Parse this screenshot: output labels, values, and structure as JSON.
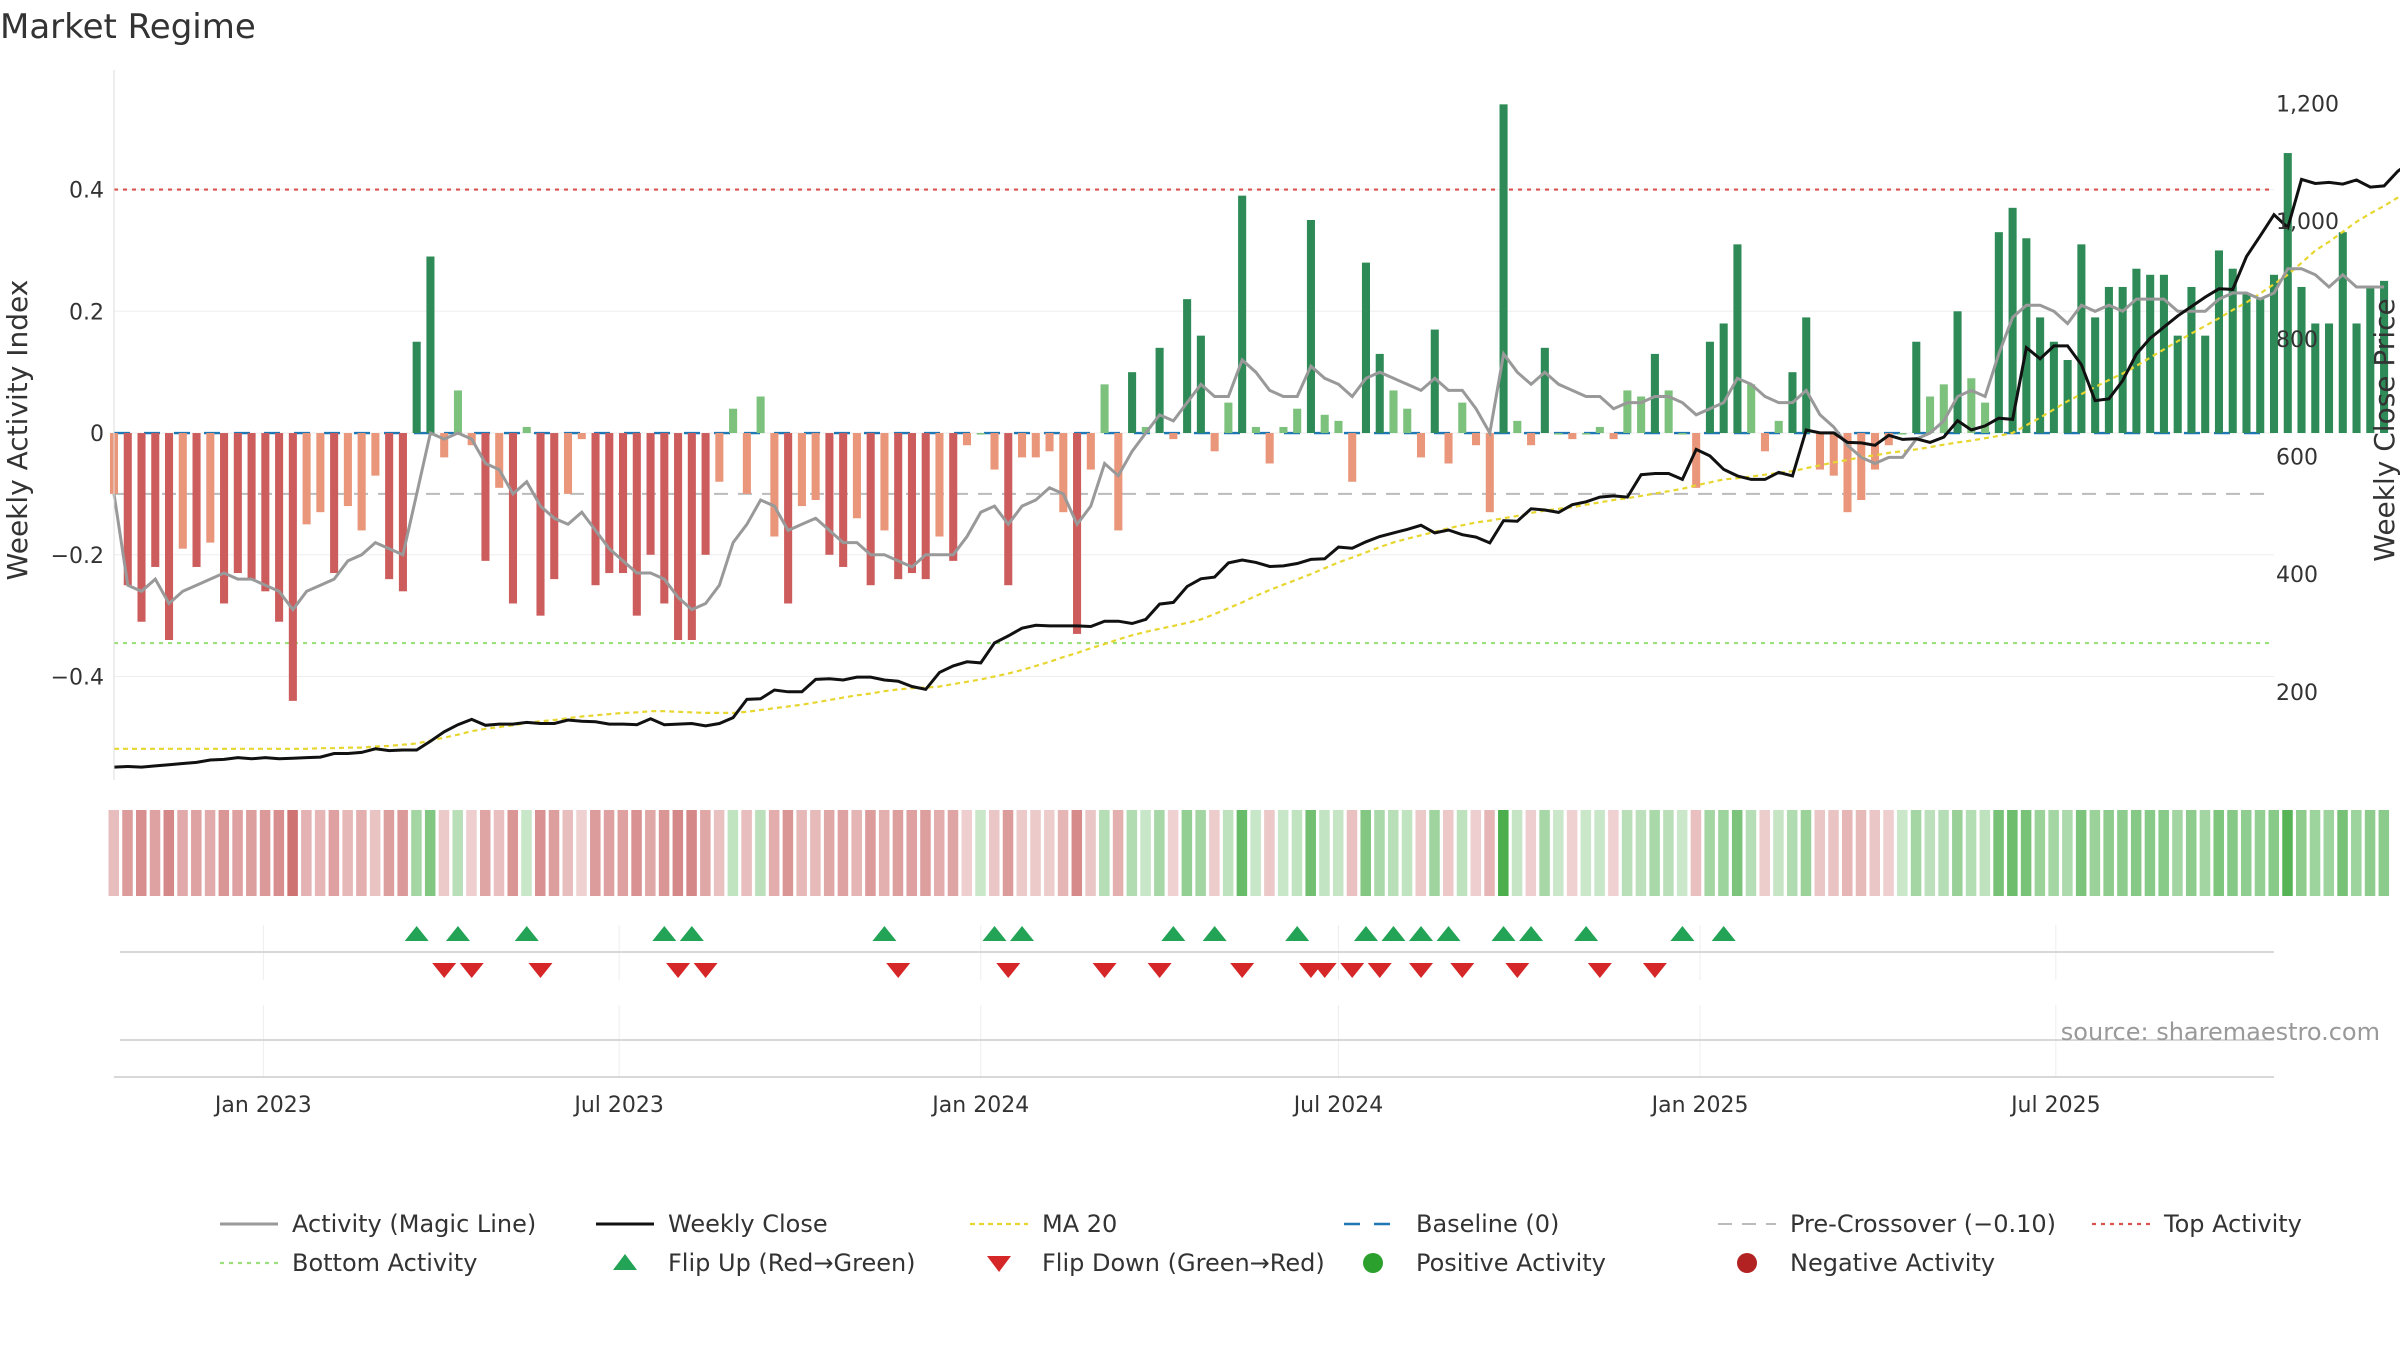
{
  "chart_data": {
    "type": "bar",
    "title": "Market Regime",
    "ylabel": "Weekly Activity Index",
    "y2label": "Weekly Close Price",
    "ylim": [
      -0.57,
      0.58
    ],
    "y2lim": [
      50,
      1240
    ],
    "yticks": [
      -0.4,
      -0.2,
      0,
      0.2,
      0.4
    ],
    "ytick_labels": [
      "−0.4",
      "−0.2",
      "0",
      "0.2",
      "0.4"
    ],
    "y2ticks": [
      200,
      400,
      600,
      800,
      1000,
      1200
    ],
    "y2tick_labels": [
      "200",
      "400",
      "600",
      "800",
      "1,000",
      "1,200"
    ],
    "x_start": "2022-10-17",
    "x_end": "2025-10-20",
    "xticks": [
      "2023-01-01",
      "2023-07-01",
      "2024-01-01",
      "2024-07-01",
      "2025-01-01",
      "2025-07-01"
    ],
    "xtick_labels": [
      "Jan 2023",
      "Jul 2023",
      "Jan 2024",
      "Jul 2024",
      "Jan 2025",
      "Jul 2025"
    ],
    "grid": true,
    "reference_lines": {
      "baseline": 0,
      "pre_crossover": -0.1,
      "top_activity": 0.4,
      "bottom_activity": -0.345
    },
    "colors": {
      "negative_strong": "#cd5c5c",
      "negative_weak": "#e9967a",
      "positive_strong": "#2e8b57",
      "positive_weak": "#7cc17c",
      "magic_line": "#999999",
      "weekly_close": "#111111",
      "ma20": "#e8d630",
      "baseline": "#1f77b4",
      "pre_crossover": "#bbbbbb",
      "top_activity": "#d9534f",
      "bottom_activity": "#9be07a",
      "flip_up": "#22a355",
      "flip_down": "#d62728",
      "positive_marker": "#2ca02c",
      "negative_marker": "#b22222"
    },
    "activity": [
      -0.1,
      -0.25,
      -0.31,
      -0.22,
      -0.34,
      -0.19,
      -0.22,
      -0.18,
      -0.28,
      -0.23,
      -0.24,
      -0.26,
      -0.31,
      -0.44,
      -0.15,
      -0.13,
      -0.23,
      -0.12,
      -0.16,
      -0.07,
      -0.24,
      -0.26,
      0.15,
      0.29,
      -0.04,
      0.07,
      -0.02,
      -0.21,
      -0.09,
      -0.28,
      0.01,
      -0.3,
      -0.24,
      -0.1,
      -0.01,
      -0.25,
      -0.23,
      -0.23,
      -0.3,
      -0.2,
      -0.28,
      -0.34,
      -0.34,
      -0.2,
      -0.08,
      0.04,
      -0.1,
      0.06,
      -0.17,
      -0.28,
      -0.12,
      -0.11,
      -0.2,
      -0.22,
      -0.14,
      -0.25,
      -0.16,
      -0.24,
      -0.23,
      -0.24,
      -0.17,
      -0.21,
      -0.02,
      0.0,
      -0.06,
      -0.25,
      -0.04,
      -0.04,
      -0.03,
      -0.13,
      -0.33,
      -0.06,
      0.08,
      -0.16,
      0.1,
      0.01,
      0.14,
      -0.01,
      0.22,
      0.16,
      -0.03,
      0.05,
      0.39,
      0.01,
      -0.05,
      0.01,
      0.04,
      0.35,
      0.03,
      0.02,
      -0.08,
      0.28,
      0.13,
      0.07,
      0.04,
      -0.04,
      0.17,
      -0.05,
      0.05,
      -0.02,
      -0.13,
      0.54,
      0.02,
      -0.02,
      0.14,
      0.0,
      -0.01,
      0.0,
      0.01,
      -0.01,
      0.07,
      0.06,
      0.13,
      0.07,
      0.0,
      -0.09,
      0.15,
      0.18,
      0.31,
      0.08,
      -0.03,
      0.02,
      0.1,
      0.19,
      -0.06,
      -0.07,
      -0.13,
      -0.11,
      -0.06,
      -0.02,
      0.0,
      0.15,
      0.06,
      0.08,
      0.2,
      0.09,
      0.05,
      0.33,
      0.37,
      0.32,
      0.19,
      0.15,
      0.12,
      0.31,
      0.19,
      0.24,
      0.24,
      0.27,
      0.26,
      0.26,
      0.16,
      0.24,
      0.16,
      0.3,
      0.27,
      0.23,
      0.22,
      0.26,
      0.46,
      0.24,
      0.18,
      0.18,
      0.33,
      0.18,
      0.24,
      0.25
    ],
    "magic_line": [
      -0.1,
      -0.25,
      -0.26,
      -0.24,
      -0.28,
      -0.26,
      -0.25,
      -0.24,
      -0.23,
      -0.24,
      -0.24,
      -0.25,
      -0.26,
      -0.29,
      -0.26,
      -0.25,
      -0.24,
      -0.21,
      -0.2,
      -0.18,
      -0.19,
      -0.2,
      -0.1,
      0.0,
      -0.01,
      0.0,
      -0.01,
      -0.05,
      -0.06,
      -0.1,
      -0.08,
      -0.12,
      -0.14,
      -0.15,
      -0.13,
      -0.16,
      -0.19,
      -0.21,
      -0.23,
      -0.23,
      -0.24,
      -0.27,
      -0.29,
      -0.28,
      -0.25,
      -0.18,
      -0.15,
      -0.11,
      -0.12,
      -0.16,
      -0.15,
      -0.14,
      -0.16,
      -0.18,
      -0.18,
      -0.2,
      -0.2,
      -0.21,
      -0.22,
      -0.2,
      -0.2,
      -0.2,
      -0.17,
      -0.13,
      -0.12,
      -0.15,
      -0.12,
      -0.11,
      -0.09,
      -0.1,
      -0.15,
      -0.12,
      -0.05,
      -0.07,
      -0.03,
      0.0,
      0.03,
      0.02,
      0.05,
      0.08,
      0.06,
      0.06,
      0.12,
      0.1,
      0.07,
      0.06,
      0.06,
      0.11,
      0.09,
      0.08,
      0.06,
      0.09,
      0.1,
      0.09,
      0.08,
      0.07,
      0.09,
      0.07,
      0.07,
      0.04,
      0.0,
      0.13,
      0.1,
      0.08,
      0.1,
      0.08,
      0.07,
      0.06,
      0.06,
      0.04,
      0.05,
      0.05,
      0.06,
      0.06,
      0.05,
      0.03,
      0.04,
      0.05,
      0.09,
      0.08,
      0.06,
      0.05,
      0.05,
      0.07,
      0.03,
      0.01,
      -0.02,
      -0.04,
      -0.05,
      -0.04,
      -0.04,
      -0.01,
      0.0,
      0.02,
      0.06,
      0.07,
      0.06,
      0.13,
      0.19,
      0.21,
      0.21,
      0.2,
      0.18,
      0.21,
      0.2,
      0.21,
      0.2,
      0.22,
      0.22,
      0.22,
      0.2,
      0.2,
      0.2,
      0.22,
      0.23,
      0.23,
      0.22,
      0.23,
      0.27,
      0.27,
      0.26,
      0.24,
      0.26,
      0.24,
      0.24,
      0.24
    ],
    "weekly_close": [
      72,
      73,
      72,
      74,
      76,
      78,
      80,
      84,
      85,
      88,
      86,
      88,
      86,
      87,
      88,
      89,
      95,
      95,
      97,
      103,
      100,
      101,
      101,
      116,
      132,
      144,
      153,
      143,
      145,
      145,
      148,
      146,
      146,
      152,
      150,
      149,
      145,
      145,
      144,
      154,
      144,
      145,
      146,
      142,
      146,
      156,
      187,
      188,
      203,
      200,
      200,
      221,
      222,
      220,
      225,
      225,
      220,
      218,
      209,
      204,
      233,
      244,
      251,
      249,
      283,
      295,
      308,
      313,
      312,
      312,
      312,
      311,
      320,
      320,
      316,
      323,
      349,
      352,
      379,
      392,
      395,
      419,
      424,
      420,
      413,
      414,
      418,
      425,
      426,
      446,
      444,
      455,
      464,
      470,
      476,
      483,
      470,
      475,
      467,
      463,
      453,
      491,
      490,
      511,
      509,
      505,
      518,
      523,
      531,
      533,
      531,
      569,
      571,
      571,
      561,
      612,
      601,
      578,
      567,
      561,
      561,
      573,
      567,
      645,
      640,
      640,
      624,
      623,
      619,
      636,
      629,
      630,
      624,
      633,
      661,
      645,
      652,
      665,
      663,
      785,
      766,
      788,
      788,
      756,
      695,
      698,
      729,
      774,
      801,
      820,
      839,
      855,
      871,
      885,
      884,
      940,
      975,
      1011,
      989,
      1071,
      1064,
      1066,
      1063,
      1070,
      1058,
      1060,
      1085,
      1102
    ],
    "ma20": [
      103,
      103,
      103,
      103,
      103,
      103,
      103,
      103,
      103,
      103,
      103,
      103,
      103,
      103,
      103,
      104,
      104,
      105,
      105,
      107,
      108,
      110,
      112,
      117,
      122,
      127,
      133,
      137,
      140,
      143,
      147,
      150,
      152,
      155,
      158,
      160,
      162,
      164,
      165,
      167,
      167,
      166,
      165,
      164,
      164,
      164,
      166,
      169,
      172,
      175,
      178,
      182,
      186,
      190,
      194,
      197,
      201,
      204,
      206,
      207,
      209,
      213,
      217,
      221,
      226,
      231,
      237,
      244,
      251,
      259,
      266,
      274,
      281,
      289,
      296,
      302,
      307,
      312,
      317,
      323,
      332,
      342,
      352,
      363,
      373,
      382,
      391,
      400,
      410,
      420,
      428,
      437,
      446,
      454,
      460,
      466,
      472,
      478,
      483,
      488,
      491,
      495,
      499,
      504,
      508,
      511,
      514,
      518,
      522,
      526,
      529,
      533,
      537,
      541,
      545,
      551,
      556,
      561,
      563,
      566,
      569,
      572,
      575,
      580,
      585,
      590,
      594,
      599,
      602,
      606,
      609,
      612,
      616,
      620,
      624,
      627,
      631,
      635,
      640,
      653,
      666,
      680,
      694,
      706,
      718,
      730,
      741,
      754,
      768,
      782,
      796,
      809,
      822,
      835,
      849,
      862,
      877,
      893,
      909,
      929,
      950,
      965,
      982,
      999,
      1013,
      1026,
      1040,
      1057
    ],
    "flip_up_dates": [
      "2023-03-20",
      "2023-04-10",
      "2023-05-15",
      "2023-07-24",
      "2023-08-07",
      "2023-11-13",
      "2024-01-08",
      "2024-01-22",
      "2024-04-08",
      "2024-04-29",
      "2024-06-10",
      "2024-07-15",
      "2024-07-29",
      "2024-08-12",
      "2024-08-26",
      "2024-09-23",
      "2024-10-07",
      "2024-11-04",
      "2024-12-23",
      "2025-01-13"
    ],
    "flip_down_dates": [
      "2023-04-03",
      "2023-04-17",
      "2023-05-22",
      "2023-07-31",
      "2023-08-14",
      "2023-11-20",
      "2024-01-15",
      "2024-03-04",
      "2024-04-01",
      "2024-05-13",
      "2024-06-17",
      "2024-06-24",
      "2024-07-08",
      "2024-07-22",
      "2024-08-12",
      "2024-09-02",
      "2024-09-30",
      "2024-11-11",
      "2024-12-09"
    ],
    "legend": [
      {
        "key": "magic",
        "label": "Activity (Magic Line)"
      },
      {
        "key": "close",
        "label": "Weekly Close"
      },
      {
        "key": "ma20",
        "label": "MA 20"
      },
      {
        "key": "baseline",
        "label": "Baseline (0)"
      },
      {
        "key": "precross",
        "label": "Pre-Crossover (−0.10)"
      },
      {
        "key": "top",
        "label": "Top Activity"
      },
      {
        "key": "bottom",
        "label": "Bottom Activity"
      },
      {
        "key": "flipup",
        "label": "Flip Up (Red→Green)"
      },
      {
        "key": "flipdown",
        "label": "Flip Down (Green→Red)"
      },
      {
        "key": "pos",
        "label": "Positive Activity"
      },
      {
        "key": "neg",
        "label": "Negative Activity"
      }
    ],
    "legend_placement": "bottom"
  },
  "source": "source: sharemaestro.com"
}
